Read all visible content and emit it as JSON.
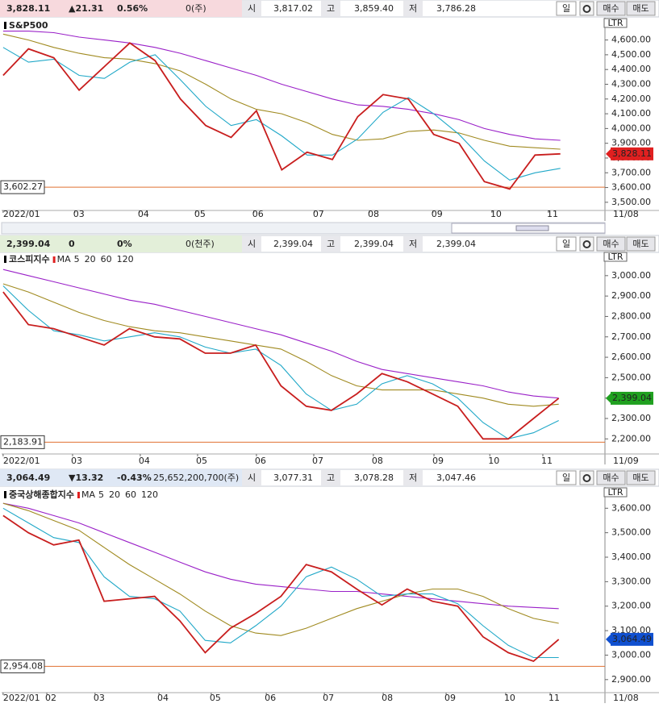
{
  "badge": "LTR",
  "day_button": "일",
  "buy_button": "매수",
  "sell_button": "매도",
  "headers": [
    {
      "price": "3,828.11",
      "change": "▲21.31",
      "rate": "0.56%",
      "volume": "0(주)",
      "open_label": "시",
      "open": "3,817.02",
      "high_label": "고",
      "high": "3,859.40",
      "low_label": "저",
      "low": "3,786.28",
      "color": "#e02020"
    },
    {
      "price": "2,399.04",
      "change": "0",
      "rate": "0%",
      "volume": "0(천주)",
      "open_label": "시",
      "open": "2,399.04",
      "high_label": "고",
      "high": "2,399.04",
      "low_label": "저",
      "low": "2,399.04",
      "color": "#222222"
    },
    {
      "price": "3,064.49",
      "change": "▼13.32",
      "rate": "-0.43%",
      "volume": "25,652,200,700(주)",
      "open_label": "시",
      "open": "3,077.31",
      "high_label": "고",
      "high": "3,078.28",
      "low_label": "저",
      "low": "3,047.46",
      "color": "#1040d0"
    }
  ],
  "chart_data": [
    {
      "type": "line",
      "title": "S&P500",
      "end_label": "11/08",
      "last_label": "3,828.11",
      "last_color": "#e02020",
      "reference": {
        "value": 3602.27,
        "label": "3,602.27"
      },
      "xlim": [
        -0.06,
        23.76
      ],
      "ylim": [
        3450,
        4740
      ],
      "xticks": [
        {
          "value": 0,
          "label": "2022/01"
        },
        {
          "value": 2.83,
          "label": "03"
        },
        {
          "value": 5.38,
          "label": "04"
        },
        {
          "value": 7.61,
          "label": "05"
        },
        {
          "value": 9.9,
          "label": "06"
        },
        {
          "value": 12.29,
          "label": "07"
        },
        {
          "value": 14.46,
          "label": "08"
        },
        {
          "value": 16.97,
          "label": "09"
        },
        {
          "value": 19.3,
          "label": "10"
        },
        {
          "value": 21.53,
          "label": "11"
        }
      ],
      "yticks": [
        {
          "value": 3500,
          "label": "3,500.00"
        },
        {
          "value": 3600,
          "label": "3,600.00"
        },
        {
          "value": 3700,
          "label": "3,700.00"
        },
        {
          "value": 3800,
          "label": "3,800.00"
        },
        {
          "value": 3900,
          "label": "3,900.00"
        },
        {
          "value": 4000,
          "label": "4,000.00"
        },
        {
          "value": 4100,
          "label": "4,100.00"
        },
        {
          "value": 4200,
          "label": "4,200.00"
        },
        {
          "value": 4300,
          "label": "4,300.00"
        },
        {
          "value": 4400,
          "label": "4,400.00"
        },
        {
          "value": 4500,
          "label": "4,500.00"
        },
        {
          "value": 4600,
          "label": "4,600.00"
        }
      ],
      "series": [
        {
          "color": "#c81e1e",
          "values": [
            4360,
            4540,
            4480,
            4260,
            4420,
            4580,
            4460,
            4200,
            4020,
            3940,
            4120,
            3720,
            3840,
            3790,
            4080,
            4230,
            4200,
            3960,
            3900,
            3640,
            3590,
            3820,
            3828.11
          ]
        },
        {
          "color": "#20a8c8",
          "values": [
            4550,
            4450,
            4470,
            4360,
            4340,
            4450,
            4500,
            4330,
            4150,
            4020,
            4060,
            3950,
            3820,
            3820,
            3930,
            4110,
            4210,
            4100,
            3960,
            3780,
            3650,
            3700,
            3730
          ]
        },
        {
          "color": "#a08a20",
          "values": [
            4640,
            4600,
            4550,
            4510,
            4480,
            4470,
            4440,
            4390,
            4300,
            4200,
            4130,
            4100,
            4040,
            3960,
            3920,
            3930,
            3980,
            3990,
            3970,
            3920,
            3880,
            3870,
            3860
          ]
        },
        {
          "color": "#9a20c8",
          "values": [
            4660,
            4660,
            4650,
            4620,
            4600,
            4580,
            4550,
            4510,
            4460,
            4410,
            4360,
            4300,
            4250,
            4200,
            4160,
            4150,
            4130,
            4100,
            4060,
            4000,
            3960,
            3930,
            3920
          ]
        }
      ]
    },
    {
      "type": "line",
      "title": "코스피지수",
      "legend_label": "MA",
      "legend": [
        {
          "name": "5",
          "color": "#e02020"
        },
        {
          "name": "20",
          "color": "#20a8c8"
        },
        {
          "name": "60",
          "color": "#a08a20"
        },
        {
          "name": "120",
          "color": "#9a20c8"
        }
      ],
      "end_label": "11/09",
      "last_label": "2,399.04",
      "last_color": "#20a020",
      "reference": {
        "value": 2183.91,
        "label": "2,183.91"
      },
      "xlim": [
        -0.06,
        23.83
      ],
      "ylim": [
        2130,
        3110
      ],
      "xticks": [
        {
          "value": 0,
          "label": "2022/01"
        },
        {
          "value": 2.75,
          "label": "03"
        },
        {
          "value": 5.43,
          "label": "04"
        },
        {
          "value": 7.7,
          "label": "05"
        },
        {
          "value": 10.03,
          "label": "06"
        },
        {
          "value": 12.3,
          "label": "07"
        },
        {
          "value": 14.66,
          "label": "08"
        },
        {
          "value": 17.06,
          "label": "09"
        },
        {
          "value": 19.27,
          "label": "10"
        },
        {
          "value": 21.37,
          "label": "11"
        }
      ],
      "yticks": [
        {
          "value": 2200,
          "label": "2,200.00"
        },
        {
          "value": 2300,
          "label": "2,300.00"
        },
        {
          "value": 2400,
          "label": "2,400.00"
        },
        {
          "value": 2500,
          "label": "2,500.00"
        },
        {
          "value": 2600,
          "label": "2,600.00"
        },
        {
          "value": 2700,
          "label": "2,700.00"
        },
        {
          "value": 2800,
          "label": "2,800.00"
        },
        {
          "value": 2900,
          "label": "2,900.00"
        },
        {
          "value": 3000,
          "label": "3,000.00"
        }
      ],
      "series": [
        {
          "color": "#c81e1e",
          "values": [
            2920,
            2760,
            2740,
            2700,
            2660,
            2740,
            2700,
            2690,
            2620,
            2620,
            2660,
            2460,
            2360,
            2340,
            2420,
            2520,
            2480,
            2420,
            2360,
            2200,
            2200,
            2300,
            2399.04
          ]
        },
        {
          "color": "#20a8c8",
          "values": [
            2950,
            2830,
            2730,
            2710,
            2680,
            2700,
            2720,
            2700,
            2650,
            2620,
            2640,
            2560,
            2420,
            2340,
            2370,
            2470,
            2510,
            2470,
            2400,
            2280,
            2200,
            2230,
            2290
          ]
        },
        {
          "color": "#a08a20",
          "values": [
            2960,
            2920,
            2870,
            2820,
            2780,
            2750,
            2730,
            2720,
            2700,
            2680,
            2660,
            2640,
            2580,
            2510,
            2460,
            2440,
            2440,
            2440,
            2420,
            2400,
            2370,
            2360,
            2370
          ]
        },
        {
          "color": "#9a20c8",
          "values": [
            3030,
            3000,
            2970,
            2940,
            2910,
            2880,
            2860,
            2830,
            2800,
            2770,
            2740,
            2710,
            2670,
            2630,
            2580,
            2540,
            2520,
            2500,
            2480,
            2460,
            2430,
            2410,
            2400
          ]
        }
      ]
    },
    {
      "type": "line",
      "title": "중국상해종합지수",
      "legend_label": "MA",
      "legend": [
        {
          "name": "5",
          "color": "#e02020"
        },
        {
          "name": "20",
          "color": "#20a8c8"
        },
        {
          "name": "60",
          "color": "#a08a20"
        },
        {
          "name": "120",
          "color": "#9a20c8"
        }
      ],
      "end_label": "11/08",
      "last_label": "3,064.49",
      "last_color": "#1050d0",
      "reference": {
        "value": 2954.08,
        "label": "2,954.08"
      },
      "xlim": [
        -0.06,
        23.83
      ],
      "ylim": [
        2850,
        3680
      ],
      "xticks": [
        {
          "value": 0,
          "label": "2022/01"
        },
        {
          "value": 1.73,
          "label": "02"
        },
        {
          "value": 3.64,
          "label": "03"
        },
        {
          "value": 6.17,
          "label": "04"
        },
        {
          "value": 8.24,
          "label": "05"
        },
        {
          "value": 10.42,
          "label": "06"
        },
        {
          "value": 12.72,
          "label": "07"
        },
        {
          "value": 15.05,
          "label": "08"
        },
        {
          "value": 17.54,
          "label": "09"
        },
        {
          "value": 19.9,
          "label": "10"
        },
        {
          "value": 21.66,
          "label": "11"
        }
      ],
      "yticks": [
        {
          "value": 2900,
          "label": "2,900.00"
        },
        {
          "value": 3000,
          "label": "3,000.00"
        },
        {
          "value": 3100,
          "label": "3,100.00"
        },
        {
          "value": 3200,
          "label": "3,200.00"
        },
        {
          "value": 3300,
          "label": "3,300.00"
        },
        {
          "value": 3400,
          "label": "3,400.00"
        },
        {
          "value": 3500,
          "label": "3,500.00"
        },
        {
          "value": 3600,
          "label": "3,600.00"
        }
      ],
      "series": [
        {
          "color": "#c81e1e",
          "values": [
            3570,
            3500,
            3450,
            3470,
            3220,
            3230,
            3240,
            3140,
            3010,
            3110,
            3170,
            3240,
            3370,
            3340,
            3270,
            3205,
            3270,
            3220,
            3200,
            3075,
            3010,
            2975,
            3064.49
          ]
        },
        {
          "color": "#20a8c8",
          "values": [
            3600,
            3540,
            3480,
            3460,
            3320,
            3240,
            3230,
            3180,
            3060,
            3050,
            3120,
            3200,
            3320,
            3360,
            3310,
            3240,
            3250,
            3250,
            3210,
            3120,
            3040,
            2990,
            2990
          ]
        },
        {
          "color": "#a08a20",
          "values": [
            3620,
            3590,
            3550,
            3510,
            3440,
            3370,
            3310,
            3250,
            3180,
            3120,
            3090,
            3080,
            3110,
            3150,
            3190,
            3220,
            3250,
            3270,
            3270,
            3240,
            3190,
            3150,
            3130
          ]
        },
        {
          "color": "#9a20c8",
          "values": [
            3620,
            3600,
            3570,
            3540,
            3500,
            3460,
            3420,
            3380,
            3340,
            3310,
            3290,
            3280,
            3270,
            3260,
            3260,
            3250,
            3240,
            3230,
            3220,
            3210,
            3200,
            3195,
            3190
          ]
        }
      ]
    }
  ]
}
